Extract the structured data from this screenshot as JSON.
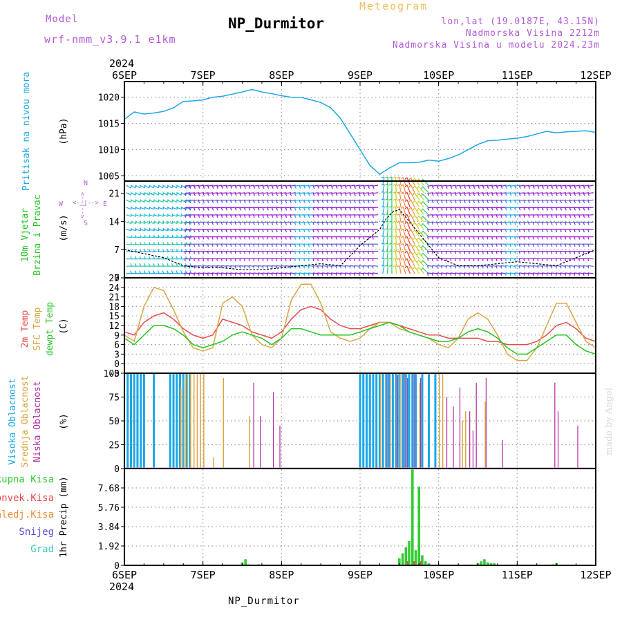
{
  "header": {
    "model_label": "Model",
    "model_name": "wrf-nmm_v3.9.1 e1km",
    "chart_kind": "Meteogram",
    "station": "NP_Durmitor",
    "lonlat": "lon,lat (19.0187E, 43.15N)",
    "altitude": "Nadmorska Visina 2212m",
    "model_altitude": "Nadmorska Visina u modelu 2024.23m"
  },
  "footer": {
    "station": "NP_Durmitor",
    "credit": "made by Angel"
  },
  "colors": {
    "pressure": "#1aa7e6",
    "temp2m": "#e84a4a",
    "sfc_temp": "#d9a640",
    "dewpt": "#22c422",
    "cloud_high": "#1aa7e6",
    "cloud_mid": "#d9a640",
    "cloud_low": "#b0289e",
    "precip_total": "#33cc33",
    "precip_conv": "#e84a4a",
    "precip_frz": "#f08c3c",
    "precip_snow": "#5a50d9",
    "precip_hail": "#3cc9c0",
    "wind_title": "#22c422",
    "compass": "#b35ad9"
  },
  "chart_data": [
    {
      "type": "line",
      "id": "pressure",
      "ylabel": "(hPa)",
      "side_label": "Pritisak na nivou mora",
      "ylim": [
        1004,
        1023
      ],
      "yticks": [
        "1005",
        "1010",
        "1015",
        "1020"
      ],
      "x_hours": [
        0,
        3,
        6,
        9,
        12,
        15,
        18,
        21,
        24,
        27,
        30,
        33,
        36,
        39,
        42,
        45,
        48,
        51,
        54,
        57,
        60,
        63,
        66,
        69,
        72,
        75,
        78,
        81,
        84,
        87,
        90,
        93,
        96,
        99,
        102,
        105,
        108,
        111,
        114,
        117,
        120,
        123,
        126,
        129,
        132,
        135,
        138,
        141,
        144
      ],
      "values": [
        1015.8,
        1017.2,
        1016.8,
        1017,
        1017.3,
        1018,
        1019.2,
        1019.3,
        1019.5,
        1020,
        1020.2,
        1020.6,
        1021,
        1021.5,
        1021,
        1020.7,
        1020.3,
        1020,
        1020,
        1019.5,
        1019,
        1018,
        1016,
        1013,
        1010,
        1007,
        1005.3,
        1006.5,
        1007.5,
        1007.5,
        1007.6,
        1008,
        1007.8,
        1008.3,
        1009,
        1010,
        1011,
        1011.7,
        1011.8,
        1012,
        1012.2,
        1012.5,
        1013,
        1013.5,
        1013.2,
        1013.4,
        1013.5,
        1013.6,
        1013.3
      ]
    },
    {
      "type": "barbs",
      "id": "wind",
      "ylabel": "(m/s)",
      "side_label": [
        "10m Vjetar",
        "Brzina i Pravac"
      ],
      "compass": [
        "N",
        "E",
        "S",
        "W"
      ],
      "compass_arrows": "<--|-->",
      "ylim": [
        0,
        24
      ],
      "yticks": [
        "0",
        "7",
        "14",
        "21"
      ],
      "speed_hours": [
        0,
        6,
        12,
        18,
        24,
        30,
        36,
        42,
        48,
        54,
        60,
        66,
        72,
        78,
        81,
        84,
        87,
        90,
        93,
        96,
        99,
        102,
        108,
        114,
        120,
        126,
        132,
        138,
        144
      ],
      "speed_values": [
        7,
        6,
        5,
        3,
        2.5,
        2.5,
        2,
        2,
        2.5,
        3,
        3.5,
        3,
        8,
        12,
        16,
        17,
        14,
        11,
        8,
        5,
        4,
        3,
        3,
        3.5,
        4,
        3.5,
        3,
        5,
        7
      ]
    },
    {
      "type": "line",
      "id": "temperature",
      "ylabel": "(C)",
      "side_label": [
        "2m Temp",
        "SFC Temp",
        "dewpt Temp"
      ],
      "ylim": [
        -3,
        27
      ],
      "yticks": [
        "-3",
        "0",
        "3",
        "6",
        "9",
        "12",
        "15",
        "18",
        "21",
        "24",
        "27"
      ],
      "x_hours": [
        0,
        3,
        6,
        9,
        12,
        15,
        18,
        21,
        24,
        27,
        30,
        33,
        36,
        39,
        42,
        45,
        48,
        51,
        54,
        57,
        60,
        63,
        66,
        69,
        72,
        75,
        78,
        81,
        84,
        87,
        90,
        93,
        96,
        99,
        102,
        105,
        108,
        111,
        114,
        117,
        120,
        123,
        126,
        129,
        132,
        135,
        138,
        141,
        144
      ],
      "series": [
        {
          "name": "2m Temp",
          "values": [
            10,
            9,
            13,
            15,
            16,
            14,
            11,
            9,
            8,
            9,
            14,
            13,
            12,
            10,
            9,
            8,
            10,
            14,
            17,
            18,
            17,
            14,
            12,
            11,
            11,
            12,
            13,
            13,
            12,
            11,
            10,
            9,
            9,
            8,
            8,
            8,
            8,
            7,
            7,
            6,
            6,
            6,
            7,
            9,
            12,
            13,
            11,
            8,
            7
          ]
        },
        {
          "name": "SFC Temp",
          "values": [
            9,
            7,
            18,
            24,
            23,
            17,
            10,
            5,
            4,
            5,
            19,
            21,
            18,
            9,
            6,
            5,
            8,
            20,
            25,
            25,
            19,
            10,
            8,
            7,
            8,
            11,
            13,
            13,
            11,
            10,
            9,
            8,
            6,
            5,
            8,
            14,
            16,
            14,
            9,
            3,
            1,
            1,
            5,
            12,
            19,
            19,
            13,
            7,
            5
          ]
        },
        {
          "name": "dewpt Temp",
          "values": [
            8,
            6,
            9,
            12,
            12,
            11,
            9,
            6,
            5,
            6,
            7,
            9,
            10,
            9,
            8,
            6,
            8,
            11,
            11,
            10,
            9,
            9,
            9,
            9,
            10,
            11,
            12,
            13,
            12,
            10,
            9,
            8,
            7,
            7,
            8,
            10,
            11,
            10,
            8,
            5,
            3,
            3,
            5,
            7,
            9,
            9,
            6,
            4,
            3
          ]
        }
      ]
    },
    {
      "type": "bar",
      "id": "clouds",
      "ylabel": "(%)",
      "side_label": [
        "Visoka Oblacnost",
        "Srednja Oblacnost",
        "Niska Oblacnost"
      ],
      "ylim": [
        0,
        100
      ],
      "yticks": [
        "0",
        "25",
        "50",
        "75",
        "100"
      ],
      "series": [
        {
          "name": "Visoka Oblacnost",
          "hours": [
            1,
            2,
            3,
            4,
            5,
            6,
            9,
            14,
            15,
            16,
            17,
            18,
            19,
            20,
            72,
            73,
            74,
            75,
            76,
            77,
            78,
            79,
            80,
            81,
            82,
            83,
            84,
            85,
            86,
            87,
            88,
            89,
            91,
            93,
            95
          ],
          "values": [
            100,
            100,
            100,
            100,
            100,
            100,
            100,
            100,
            100,
            100,
            100,
            100,
            100,
            100,
            100,
            100,
            100,
            100,
            100,
            100,
            100,
            100,
            100,
            100,
            100,
            100,
            100,
            100,
            100,
            100,
            100,
            100,
            100,
            100,
            100
          ]
        },
        {
          "name": "Srednja Oblacnost",
          "hours": [
            17,
            18,
            19,
            20,
            21,
            22,
            23,
            24,
            27,
            30,
            38,
            78,
            81,
            84,
            90,
            96,
            97,
            103,
            104,
            110
          ],
          "values": [
            85,
            95,
            100,
            100,
            100,
            100,
            100,
            100,
            12,
            95,
            55,
            100,
            95,
            100,
            90,
            100,
            100,
            50,
            60,
            70
          ]
        },
        {
          "name": "Niska Oblacnost",
          "hours": [
            39,
            41,
            45,
            47,
            80,
            83,
            85,
            86,
            88,
            90,
            98,
            100,
            102,
            105,
            106,
            107,
            110,
            115,
            131,
            132,
            138
          ],
          "values": [
            90,
            55,
            80,
            45,
            100,
            98,
            100,
            95,
            100,
            95,
            75,
            65,
            85,
            60,
            40,
            90,
            95,
            30,
            90,
            60,
            45
          ]
        }
      ]
    },
    {
      "type": "bar",
      "id": "precip",
      "ylabel": "1hr Precip (mm)",
      "side_label": [
        "Ukupna Kisa",
        "Konvek.Kisa",
        "Zaledj.Kisa",
        "Snijeg",
        "Grad"
      ],
      "ylim": [
        0,
        9.6
      ],
      "yticks": [
        "0",
        "1.92",
        "3.84",
        "5.76",
        "7.68"
      ],
      "x_hours": [
        36,
        37,
        38,
        41,
        84,
        85,
        86,
        87,
        88,
        89,
        90,
        91,
        92,
        93,
        108,
        109,
        110,
        111,
        112,
        113,
        131,
        132
      ],
      "values": [
        0.3,
        0.6,
        0.1,
        0.1,
        0.7,
        1.2,
        1.8,
        2.4,
        9.5,
        1.5,
        7.8,
        1.0,
        0.4,
        0.2,
        0.2,
        0.4,
        0.6,
        0.3,
        0.2,
        0.2,
        0.1,
        0.2
      ]
    }
  ],
  "x_axis": {
    "labels": [
      "6SEP",
      "7SEP",
      "8SEP",
      "9SEP",
      "10SEP",
      "11SEP",
      "12SEP"
    ],
    "year": "2024"
  }
}
